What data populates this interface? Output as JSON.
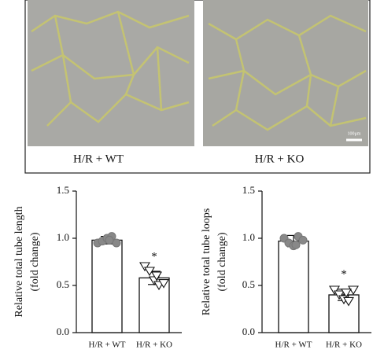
{
  "panels": [
    {
      "label": "H/R + WT"
    },
    {
      "label": "H/R + KO",
      "scale_bar": "100μm"
    }
  ],
  "chart_data": [
    {
      "type": "bar",
      "ylabel": [
        "Relative total tube length",
        "(fold change)"
      ],
      "categories": [
        "H/R + WT",
        "H/R + KO"
      ],
      "values": [
        0.98,
        0.58
      ],
      "errors": [
        0.04,
        0.07
      ],
      "points": [
        [
          0.95,
          0.97,
          1.0,
          1.02,
          0.95,
          0.98
        ],
        [
          0.7,
          0.65,
          0.55,
          0.5,
          0.52,
          0.6
        ]
      ],
      "annotation": "*",
      "color": "#ffffff",
      "point_colors": [
        "#888888",
        "#ffffff"
      ],
      "ylim": [
        0,
        1.5
      ],
      "yticks": [
        {
          "value": 0,
          "label": "0.0"
        },
        {
          "value": 0.5,
          "label": "0.5"
        },
        {
          "value": 1,
          "label": "1.0"
        },
        {
          "value": 1.5,
          "label": "1.5"
        }
      ]
    },
    {
      "type": "bar",
      "ylabel": [
        "Relative total tube loops",
        "(fold change)"
      ],
      "categories": [
        "H/R + WT",
        "H/R + KO"
      ],
      "values": [
        0.97,
        0.4
      ],
      "errors": [
        0.06,
        0.06
      ],
      "points": [
        [
          1.0,
          0.95,
          0.92,
          1.02,
          0.98,
          0.93
        ],
        [
          0.45,
          0.4,
          0.35,
          0.33,
          0.45,
          0.42
        ]
      ],
      "annotation": "*",
      "color": "#ffffff",
      "point_colors": [
        "#888888",
        "#ffffff"
      ],
      "ylim": [
        0,
        1.5
      ],
      "yticks": [
        {
          "value": 0,
          "label": "0.0"
        },
        {
          "value": 0.5,
          "label": "0.5"
        },
        {
          "value": 1,
          "label": "1.0"
        },
        {
          "value": 1.5,
          "label": "1.5"
        }
      ]
    }
  ]
}
